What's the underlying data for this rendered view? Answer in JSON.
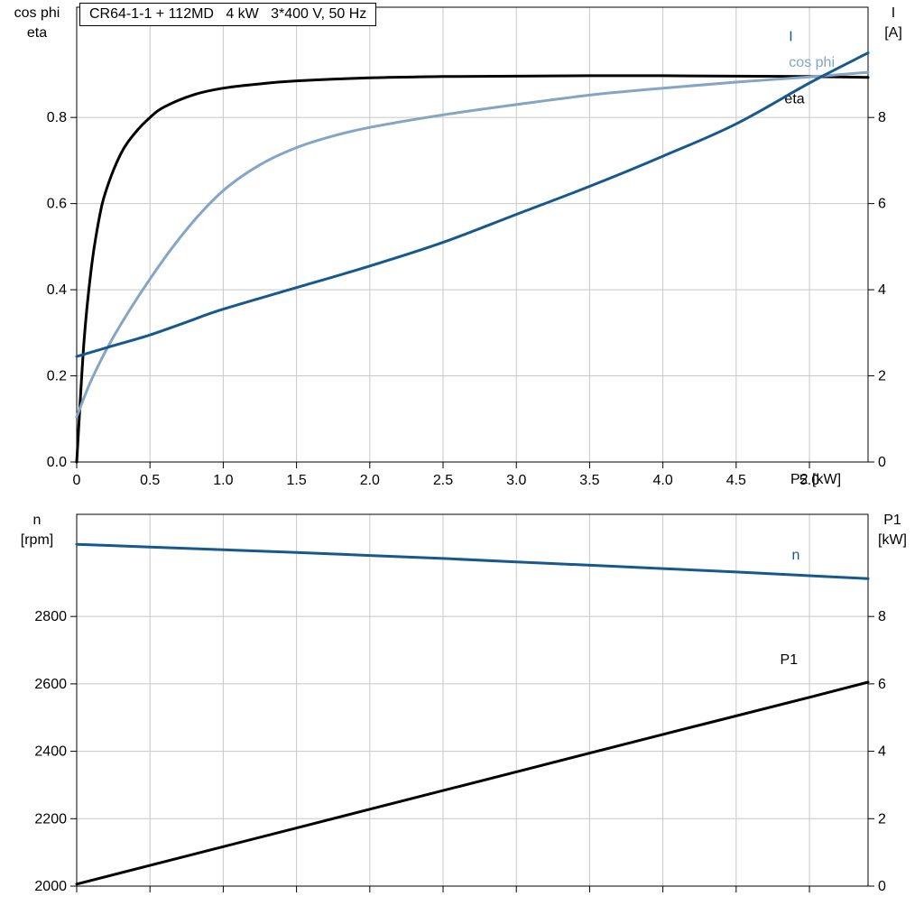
{
  "header": {
    "title": "CR64-1-1 + 112MD   4 kW   3*400 V, 50 Hz"
  },
  "colors": {
    "black": "#000000",
    "dark_blue": "#17598c",
    "light_blue": "#84a5c3",
    "grid": "#c8c8c8",
    "axis": "#000000",
    "background": "#ffffff"
  },
  "chart_data": [
    {
      "type": "line",
      "title": "CR64-1-1 + 112MD   4 kW   3*400 V, 50 Hz",
      "xlabel": "P2 [kW]",
      "ylabel_left": [
        "cos phi",
        "eta"
      ],
      "ylabel_right": [
        "I",
        "[A]"
      ],
      "xlim": [
        0,
        5.4
      ],
      "ylim_left": [
        0,
        1.056
      ],
      "ylim_right": [
        0,
        10.56
      ],
      "grid": true,
      "legend_position": "inline-right",
      "xticks": {
        "values": [
          0,
          0.5,
          1,
          1.5,
          2,
          2.5,
          3,
          3.5,
          4,
          4.5,
          5
        ],
        "labels": [
          "0",
          "0.5",
          "1.0",
          "1.5",
          "2.0",
          "2.5",
          "3.0",
          "3.5",
          "4.0",
          "4.5",
          "5.0"
        ]
      },
      "yticks_left": {
        "values": [
          0,
          0.2,
          0.4,
          0.6,
          0.8
        ],
        "labels": [
          "0.0",
          "0.2",
          "0.4",
          "0.6",
          "0.8"
        ]
      },
      "yticks_right": {
        "values": [
          0,
          2,
          4,
          6,
          8
        ],
        "labels": [
          "0",
          "2",
          "4",
          "6",
          "8"
        ]
      },
      "series": [
        {
          "name": "eta",
          "axis": "left",
          "color": "black",
          "x": [
            0,
            0.05,
            0.1,
            0.15,
            0.2,
            0.3,
            0.4,
            0.5,
            0.6,
            0.8,
            1,
            1.25,
            1.5,
            2,
            2.5,
            3,
            3.5,
            4,
            4.5,
            5,
            5.4
          ],
          "y": [
            0,
            0.28,
            0.45,
            0.56,
            0.63,
            0.715,
            0.765,
            0.8,
            0.825,
            0.853,
            0.868,
            0.878,
            0.885,
            0.892,
            0.895,
            0.896,
            0.897,
            0.897,
            0.896,
            0.895,
            0.893
          ],
          "label": {
            "text": "eta",
            "x": 4.83,
            "y": 0.845
          }
        },
        {
          "name": "cos phi",
          "axis": "left",
          "color": "light_blue",
          "x": [
            0,
            0.1,
            0.25,
            0.5,
            0.75,
            1,
            1.25,
            1.5,
            1.75,
            2,
            2.5,
            3,
            3.5,
            4,
            4.5,
            5,
            5.4
          ],
          "y": [
            0.105,
            0.19,
            0.29,
            0.425,
            0.54,
            0.63,
            0.69,
            0.73,
            0.757,
            0.777,
            0.806,
            0.83,
            0.852,
            0.868,
            0.882,
            0.894,
            0.905
          ],
          "label": {
            "text": "cos phi",
            "x": 4.86,
            "y": 0.93
          }
        },
        {
          "name": "I",
          "axis": "right",
          "color": "dark_blue",
          "x": [
            0,
            0.25,
            0.5,
            0.75,
            1,
            1.5,
            2,
            2.5,
            3,
            3.5,
            4,
            4.5,
            5,
            5.4
          ],
          "y": [
            2.45,
            2.7,
            2.95,
            3.25,
            3.55,
            4.05,
            4.55,
            5.1,
            5.75,
            6.4,
            7.1,
            7.85,
            8.8,
            9.5
          ],
          "label": {
            "text": "I",
            "x": 4.86,
            "y": 9.9
          }
        }
      ]
    },
    {
      "type": "line",
      "title": "",
      "xlabel": "",
      "ylabel_left": [
        "n",
        "[rpm]"
      ],
      "ylabel_right": [
        "P1",
        "[kW]"
      ],
      "xlim": [
        0,
        5.4
      ],
      "ylim_left": [
        2000,
        3103
      ],
      "ylim_right": [
        0,
        11.03
      ],
      "grid": true,
      "legend_position": "inline-right",
      "xticks": {
        "values": [
          0,
          0.5,
          1,
          1.5,
          2,
          2.5,
          3,
          3.5,
          4,
          4.5,
          5
        ],
        "labels": null
      },
      "yticks_left": {
        "values": [
          2000,
          2200,
          2400,
          2600,
          2800
        ],
        "labels": [
          "2000",
          "2200",
          "2400",
          "2600",
          "2800"
        ]
      },
      "yticks_right": {
        "values": [
          0,
          2,
          4,
          6,
          8
        ],
        "labels": [
          "0",
          "2",
          "4",
          "6",
          "8"
        ]
      },
      "series": [
        {
          "name": "n",
          "axis": "left",
          "color": "dark_blue",
          "x": [
            0,
            0.5,
            1,
            1.5,
            2,
            2.5,
            3,
            3.5,
            4,
            4.5,
            5,
            5.4
          ],
          "y": [
            3014,
            3006,
            2998,
            2990,
            2981,
            2972,
            2962,
            2952,
            2942,
            2932,
            2921,
            2912
          ],
          "label": {
            "text": "n",
            "x": 4.88,
            "y": 2985
          }
        },
        {
          "name": "P1",
          "axis": "right",
          "color": "black",
          "x": [
            0,
            1,
            2,
            3,
            4,
            5,
            5.4
          ],
          "y": [
            0.06,
            1.17,
            2.28,
            3.39,
            4.5,
            5.6,
            6.05
          ],
          "label": {
            "text": "P1",
            "x": 4.8,
            "y": 6.75
          }
        }
      ]
    }
  ]
}
